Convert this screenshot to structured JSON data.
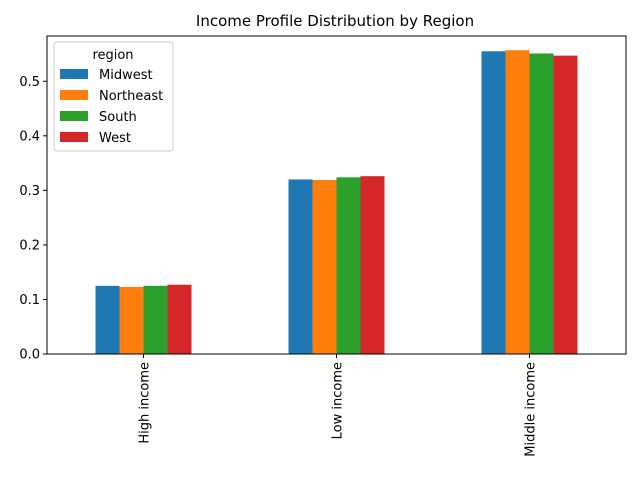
{
  "chart_data": {
    "type": "bar",
    "title": "Income Profile Distribution by Region",
    "xlabel": "",
    "ylabel": "",
    "categories": [
      "High income",
      "Low income",
      "Middle income"
    ],
    "series": [
      {
        "name": "Midwest",
        "color": "#1f77b4",
        "values": [
          0.125,
          0.32,
          0.555
        ]
      },
      {
        "name": "Northeast",
        "color": "#ff7f0e",
        "values": [
          0.123,
          0.319,
          0.557
        ]
      },
      {
        "name": "South",
        "color": "#2ca02c",
        "values": [
          0.125,
          0.324,
          0.551
        ]
      },
      {
        "name": "West",
        "color": "#d62728",
        "values": [
          0.127,
          0.326,
          0.547
        ]
      }
    ],
    "ylim": [
      0,
      0.583
    ],
    "yticks": [
      "0.0",
      "0.1",
      "0.2",
      "0.3",
      "0.4",
      "0.5"
    ],
    "legend": {
      "title": "region",
      "placement": "top-left"
    },
    "grid": false
  }
}
